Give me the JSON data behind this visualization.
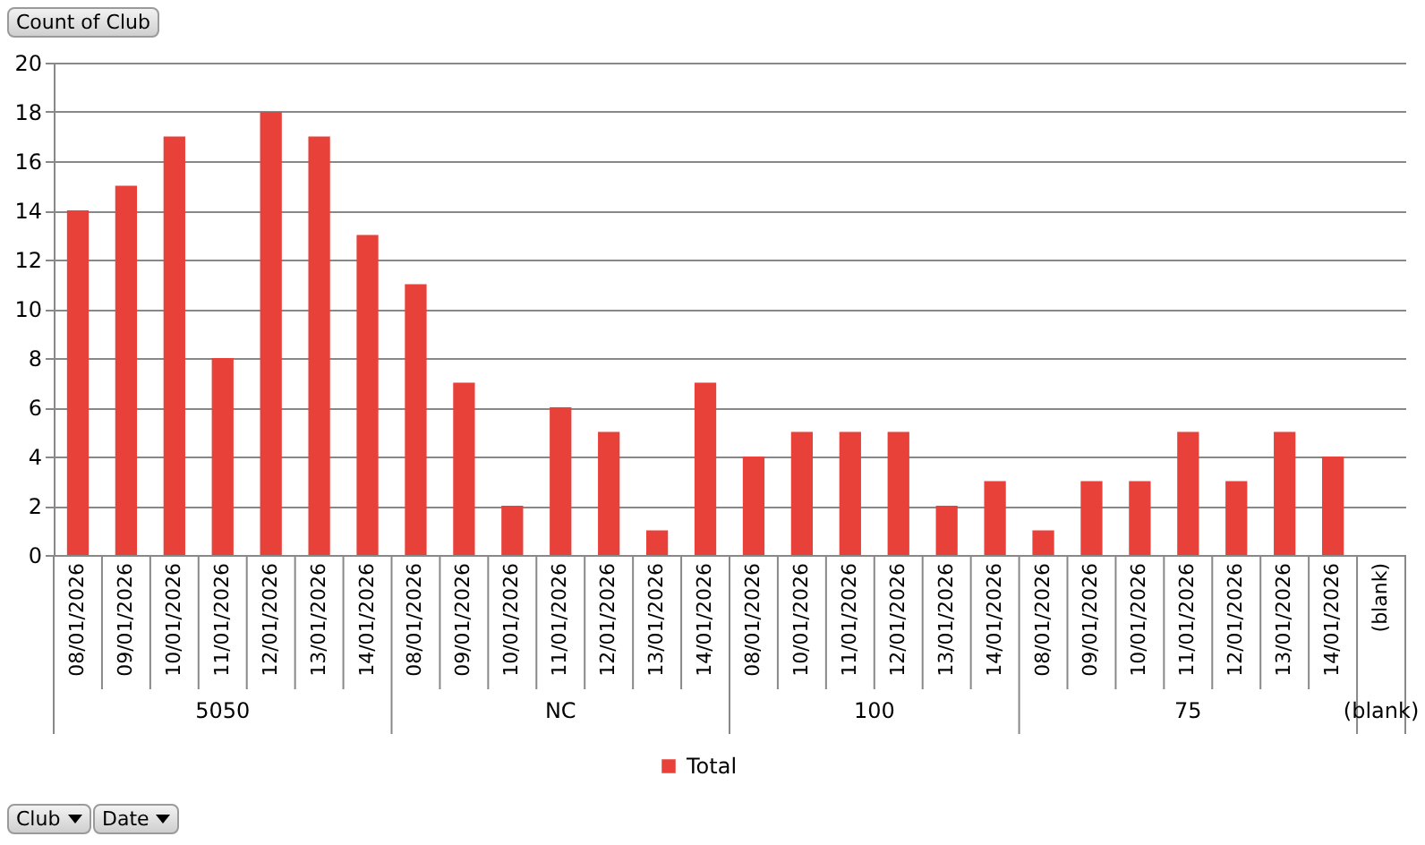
{
  "chart_data": {
    "type": "bar",
    "categories": [
      "08/01/2026",
      "09/01/2026",
      "10/01/2026",
      "11/01/2026",
      "12/01/2026",
      "13/01/2026",
      "14/01/2026",
      "08/01/2026",
      "09/01/2026",
      "10/01/2026",
      "11/01/2026",
      "12/01/2026",
      "13/01/2026",
      "14/01/2026",
      "08/01/2026",
      "10/01/2026",
      "11/01/2026",
      "12/01/2026",
      "13/01/2026",
      "14/01/2026",
      "08/01/2026",
      "09/01/2026",
      "10/01/2026",
      "11/01/2026",
      "12/01/2026",
      "13/01/2026",
      "14/01/2026",
      "(blank)"
    ],
    "series": [
      {
        "name": "Total",
        "color": "#e8413a",
        "values": [
          14,
          15,
          17,
          8,
          18,
          17,
          13,
          11,
          7,
          2,
          6,
          5,
          1,
          7,
          4,
          5,
          5,
          5,
          2,
          3,
          1,
          3,
          3,
          5,
          3,
          5,
          4,
          null
        ]
      }
    ],
    "ylim": [
      0,
      20
    ],
    "yticks": [
      0,
      2,
      4,
      6,
      8,
      10,
      12,
      14,
      16,
      18,
      20
    ],
    "grid": "y",
    "legend": "bottom",
    "annotations": [
      "Count of Club",
      "5050",
      "NC",
      "100",
      "75",
      "(blank)",
      "Club",
      "Date"
    ]
  }
}
